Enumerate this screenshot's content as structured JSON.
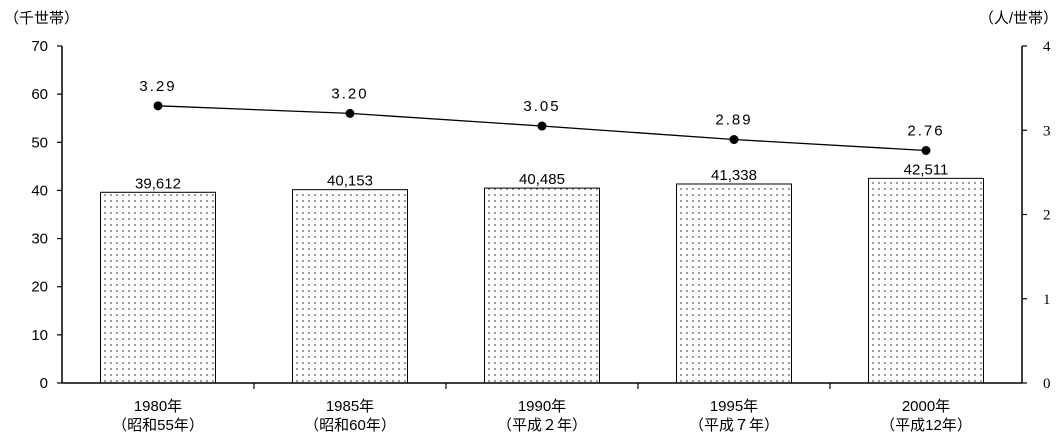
{
  "chart_data": {
    "type": "bar",
    "left_unit": "（千世帯）",
    "right_unit": "（人/世帯）",
    "categories": [
      [
        "1980年",
        "（昭和55年）"
      ],
      [
        "1985年",
        "（昭和60年）"
      ],
      [
        "1990年",
        "（平成２年）"
      ],
      [
        "1995年",
        "（平成７年）"
      ],
      [
        "2000年",
        "（平成12年）"
      ]
    ],
    "series": [
      {
        "type": "bar",
        "axis": "left",
        "values": [
          39.612,
          40.153,
          40.485,
          41.338,
          42.511
        ],
        "labels": [
          "39,612",
          "40,153",
          "40,485",
          "41,338",
          "42,511"
        ]
      },
      {
        "type": "line",
        "axis": "right",
        "values": [
          3.29,
          3.2,
          3.05,
          2.89,
          2.76
        ],
        "labels": [
          "3.29",
          "3.20",
          "3.05",
          "2.89",
          "2.76"
        ]
      }
    ],
    "y_left": {
      "min": 0,
      "max": 70,
      "ticks": [
        "0",
        "10",
        "20",
        "30",
        "40",
        "50",
        "60",
        "70"
      ]
    },
    "y_right": {
      "min": 0,
      "max": 4,
      "ticks": [
        "0",
        "1",
        "2",
        "3",
        "4"
      ]
    },
    "grid": false,
    "legend": "none",
    "bar_fill": "dotted"
  }
}
